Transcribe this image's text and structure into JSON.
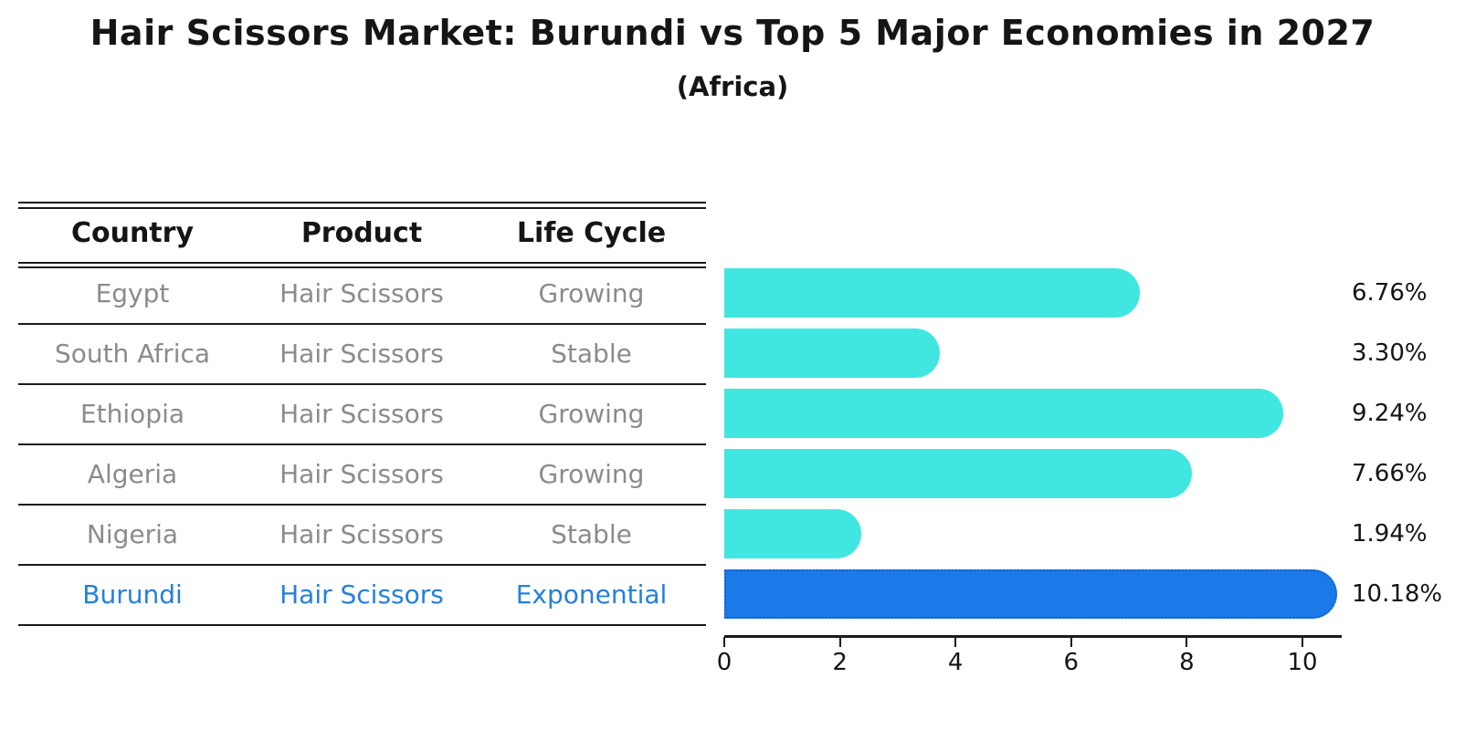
{
  "header": {
    "title": "Hair Scissors Market: Burundi vs Top 5 Major Economies in 2027",
    "subtitle": "(Africa)"
  },
  "table": {
    "headers": [
      "Country",
      "Product",
      "Life Cycle"
    ],
    "rows": [
      {
        "country": "Egypt",
        "product": "Hair Scissors",
        "life_cycle": "Growing",
        "highlight": false
      },
      {
        "country": "South Africa",
        "product": "Hair Scissors",
        "life_cycle": "Stable",
        "highlight": false
      },
      {
        "country": "Ethiopia",
        "product": "Hair Scissors",
        "life_cycle": "Growing",
        "highlight": false
      },
      {
        "country": "Algeria",
        "product": "Hair Scissors",
        "life_cycle": "Growing",
        "highlight": false
      },
      {
        "country": "Nigeria",
        "product": "Hair Scissors",
        "life_cycle": "Stable",
        "highlight": false
      },
      {
        "country": "Burundi",
        "product": "Hair Scissors",
        "life_cycle": "Exponential",
        "highlight": true
      }
    ]
  },
  "chart_data": {
    "type": "bar",
    "orientation": "horizontal",
    "title": "Hair Scissors Market: Burundi vs Top 5 Major Economies in 2027",
    "subtitle": "(Africa)",
    "categories": [
      "Egypt",
      "South Africa",
      "Ethiopia",
      "Algeria",
      "Nigeria",
      "Burundi"
    ],
    "values": [
      6.76,
      3.3,
      9.24,
      7.66,
      1.94,
      10.18
    ],
    "bar_labels": [
      "6.76%",
      "3.30%",
      "9.24%",
      "7.66%",
      "1.94%",
      "10.18%"
    ],
    "x_ticks": [
      0,
      2,
      4,
      6,
      8,
      10
    ],
    "xlim": [
      0,
      10.66
    ],
    "xlabel": "",
    "ylabel": "",
    "grid": false,
    "legend": false,
    "highlight_index": 5
  },
  "colors": {
    "bar": "#40E6E0",
    "highlight_bar": "#1B7AE8",
    "highlight_border": "#0E62D8",
    "highlight_text": "#2580DC",
    "row_text": "#8B8B8B",
    "header_text": "#151515",
    "line": "#1A1A1A"
  }
}
